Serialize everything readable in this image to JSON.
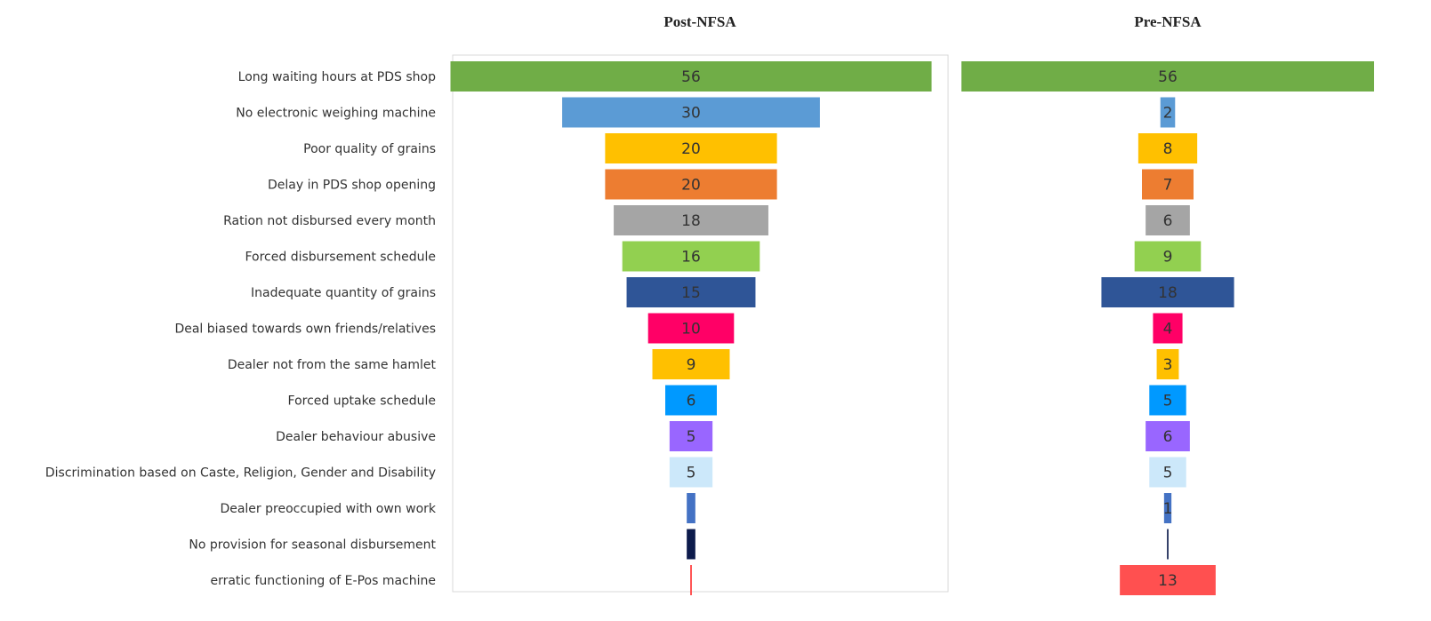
{
  "chart_data": {
    "type": "bar",
    "subtype": "funnel",
    "categories": [
      "Long waiting hours at PDS shop",
      "No electronic weighing machine",
      "Poor quality of grains",
      "Delay in PDS shop opening",
      "Ration not disbursed every month",
      "Forced disbursement schedule",
      "Inadequate quantity of grains",
      "Deal biased towards own friends/relatives",
      "Dealer not from the same hamlet",
      "Forced uptake schedule",
      "Dealer behaviour abusive",
      "Discrimination based on Caste, Religion, Gender and Disability",
      "Dealer preoccupied with own work",
      "No provision for seasonal disbursement",
      "erratic functioning of E-Pos machine"
    ],
    "colors": [
      "#70AD47",
      "#5B9BD5",
      "#FFC000",
      "#ED7D31",
      "#A5A5A5",
      "#92D050",
      "#2F5597",
      "#FF0066",
      "#FFC000",
      "#0099FF",
      "#9966FF",
      "#CCE8FA",
      "#4472C4",
      "#0D1B4C",
      "#FF5050"
    ],
    "series": [
      {
        "name": "Post-NFSA",
        "values": [
          56,
          30,
          20,
          20,
          18,
          16,
          15,
          10,
          9,
          6,
          5,
          5,
          1,
          1,
          0.2
        ],
        "labels": [
          "56",
          "30",
          "20",
          "20",
          "18",
          "16",
          "15",
          "10",
          "9",
          "6",
          "5",
          "5",
          "",
          "",
          ""
        ]
      },
      {
        "name": "Pre-NFSA",
        "values": [
          56,
          2,
          8,
          7,
          6,
          9,
          18,
          4,
          3,
          5,
          6,
          5,
          1,
          0.2,
          13
        ],
        "labels": [
          "56",
          "2",
          "8",
          "7",
          "6",
          "9",
          "18",
          "4",
          "3",
          "5",
          "6",
          "5",
          "1",
          "",
          "13"
        ]
      }
    ],
    "xlim": [
      0,
      56
    ],
    "grid": false,
    "legend": "none"
  }
}
